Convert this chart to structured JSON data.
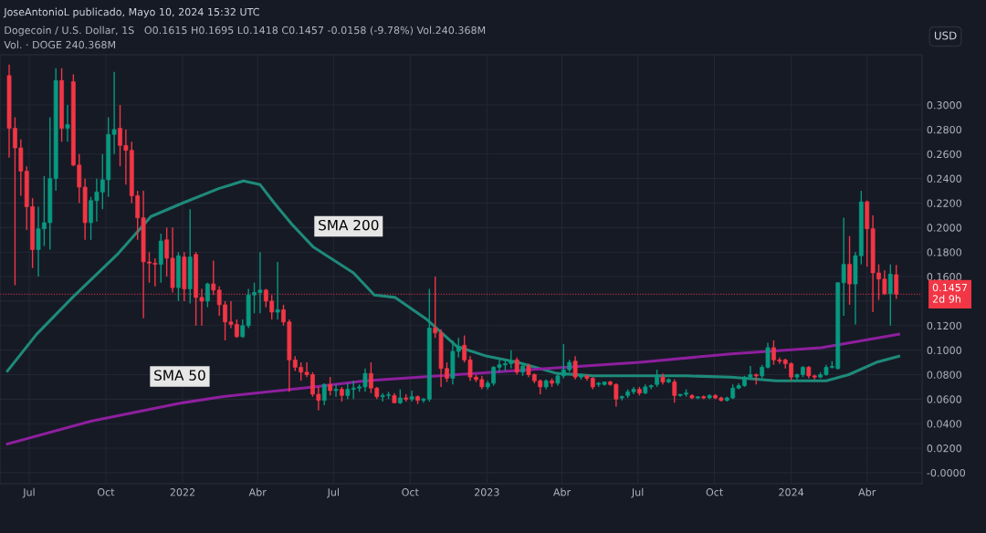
{
  "chart_data": {
    "type": "candlestick",
    "title": "Dogecoin / U.S. Dollar, 1S   O0.1615 H0.1695 L0.1418 C0.1457 -0.0158 (-9.78%) Vol.240.368M",
    "subtitle": "Vol. · DOGE 240.368M",
    "ylabel": "USD",
    "annotations": [
      "JoseAntonioL publicado, Mayo 10, 2024 15:32 UTC",
      "SMA 200",
      "SMA 50"
    ],
    "x": [
      "2021-06-07",
      "2021-06-14",
      "2021-06-21",
      "2021-06-28",
      "2021-07-05",
      "2021-07-12",
      "2021-07-19",
      "2021-07-26",
      "2021-08-02",
      "2021-08-09",
      "2021-08-16",
      "2021-08-23",
      "2021-08-30",
      "2021-09-06",
      "2021-09-13",
      "2021-09-20",
      "2021-09-27",
      "2021-10-04",
      "2021-10-11",
      "2021-10-18",
      "2021-10-25",
      "2021-11-01",
      "2021-11-08",
      "2021-11-15",
      "2021-11-22",
      "2021-11-29",
      "2021-12-06",
      "2021-12-13",
      "2021-12-20",
      "2021-12-27",
      "2022-01-03",
      "2022-01-10",
      "2022-01-17",
      "2022-01-24",
      "2022-01-31",
      "2022-02-07",
      "2022-02-14",
      "2022-02-21",
      "2022-02-28",
      "2022-03-07",
      "2022-03-14",
      "2022-03-21",
      "2022-03-28",
      "2022-04-04",
      "2022-04-11",
      "2022-04-18",
      "2022-04-25",
      "2022-05-02",
      "2022-05-09",
      "2022-05-16",
      "2022-05-23",
      "2022-05-30",
      "2022-06-06",
      "2022-06-13",
      "2022-06-20",
      "2022-06-27",
      "2022-07-04",
      "2022-07-11",
      "2022-07-18",
      "2022-07-25",
      "2022-08-01",
      "2022-08-08",
      "2022-08-15",
      "2022-08-22",
      "2022-08-29",
      "2022-09-05",
      "2022-09-12",
      "2022-09-19",
      "2022-09-26",
      "2022-10-03",
      "2022-10-10",
      "2022-10-17",
      "2022-10-24",
      "2022-10-31",
      "2022-11-07",
      "2022-11-14",
      "2022-11-21",
      "2022-11-28",
      "2022-12-05",
      "2022-12-12",
      "2022-12-19",
      "2022-12-26",
      "2023-01-02",
      "2023-01-09",
      "2023-01-16",
      "2023-01-23",
      "2023-01-30",
      "2023-02-06",
      "2023-02-13",
      "2023-02-20",
      "2023-02-27",
      "2023-03-06",
      "2023-03-13",
      "2023-03-20",
      "2023-03-27",
      "2023-04-03",
      "2023-04-10",
      "2023-04-17",
      "2023-04-24",
      "2023-05-01",
      "2023-05-08",
      "2023-05-15",
      "2023-05-22",
      "2023-05-29",
      "2023-06-05",
      "2023-06-12",
      "2023-06-19",
      "2023-06-26",
      "2023-07-03",
      "2023-07-10",
      "2023-07-17",
      "2023-07-24",
      "2023-07-31",
      "2023-08-07",
      "2023-08-14",
      "2023-08-21",
      "2023-08-28",
      "2023-09-04",
      "2023-09-11",
      "2023-09-18",
      "2023-09-25",
      "2023-10-02",
      "2023-10-09",
      "2023-10-16",
      "2023-10-23",
      "2023-10-30",
      "2023-11-06",
      "2023-11-13",
      "2023-11-20",
      "2023-11-27",
      "2023-12-04",
      "2023-12-11",
      "2023-12-18",
      "2023-12-25",
      "2024-01-01",
      "2024-01-08",
      "2024-01-15",
      "2024-01-22",
      "2024-01-29",
      "2024-02-05",
      "2024-02-12",
      "2024-02-19",
      "2024-02-26",
      "2024-03-04",
      "2024-03-11",
      "2024-03-18",
      "2024-03-25",
      "2024-04-01",
      "2024-04-08",
      "2024-04-15",
      "2024-04-22",
      "2024-04-29",
      "2024-05-06"
    ],
    "ohlc": [
      [
        0.324,
        0.333,
        0.257,
        0.281
      ],
      [
        0.281,
        0.29,
        0.153,
        0.265
      ],
      [
        0.265,
        0.272,
        0.226,
        0.246
      ],
      [
        0.246,
        0.25,
        0.198,
        0.217
      ],
      [
        0.217,
        0.224,
        0.167,
        0.182
      ],
      [
        0.182,
        0.217,
        0.16,
        0.199
      ],
      [
        0.199,
        0.242,
        0.185,
        0.204
      ],
      [
        0.204,
        0.29,
        0.182,
        0.24
      ],
      [
        0.24,
        0.33,
        0.23,
        0.32
      ],
      [
        0.32,
        0.33,
        0.27,
        0.281
      ],
      [
        0.281,
        0.3,
        0.27,
        0.284
      ],
      [
        0.319,
        0.325,
        0.25,
        0.251
      ],
      [
        0.251,
        0.26,
        0.22,
        0.233
      ],
      [
        0.233,
        0.24,
        0.19,
        0.204
      ],
      [
        0.204,
        0.225,
        0.19,
        0.222
      ],
      [
        0.222,
        0.24,
        0.205,
        0.229
      ],
      [
        0.229,
        0.26,
        0.215,
        0.239
      ],
      [
        0.239,
        0.29,
        0.225,
        0.276
      ],
      [
        0.276,
        0.327,
        0.26,
        0.28
      ],
      [
        0.281,
        0.3,
        0.25,
        0.267
      ],
      [
        0.267,
        0.28,
        0.235,
        0.263
      ],
      [
        0.263,
        0.27,
        0.22,
        0.226
      ],
      [
        0.226,
        0.23,
        0.19,
        0.208
      ],
      [
        0.208,
        0.23,
        0.126,
        0.172
      ],
      [
        0.172,
        0.18,
        0.155,
        0.171
      ],
      [
        0.171,
        0.175,
        0.152,
        0.17
      ],
      [
        0.17,
        0.195,
        0.155,
        0.189
      ],
      [
        0.19,
        0.2,
        0.16,
        0.175
      ],
      [
        0.175,
        0.2,
        0.147,
        0.151
      ],
      [
        0.151,
        0.18,
        0.14,
        0.177
      ],
      [
        0.176,
        0.18,
        0.14,
        0.15
      ],
      [
        0.15,
        0.215,
        0.138,
        0.176
      ],
      [
        0.178,
        0.18,
        0.12,
        0.143
      ],
      [
        0.143,
        0.15,
        0.12,
        0.14
      ],
      [
        0.14,
        0.155,
        0.135,
        0.154
      ],
      [
        0.154,
        0.173,
        0.145,
        0.149
      ],
      [
        0.149,
        0.152,
        0.128,
        0.137
      ],
      [
        0.137,
        0.14,
        0.108,
        0.123
      ],
      [
        0.123,
        0.14,
        0.118,
        0.121
      ],
      [
        0.121,
        0.125,
        0.11,
        0.111
      ],
      [
        0.111,
        0.125,
        0.11,
        0.12
      ],
      [
        0.12,
        0.15,
        0.118,
        0.145
      ],
      [
        0.145,
        0.155,
        0.13,
        0.147
      ],
      [
        0.147,
        0.18,
        0.13,
        0.149
      ],
      [
        0.149,
        0.15,
        0.135,
        0.14
      ],
      [
        0.14,
        0.145,
        0.125,
        0.131
      ],
      [
        0.131,
        0.172,
        0.125,
        0.133
      ],
      [
        0.133,
        0.137,
        0.12,
        0.123
      ],
      [
        0.123,
        0.125,
        0.066,
        0.092
      ],
      [
        0.092,
        0.095,
        0.083,
        0.086
      ],
      [
        0.086,
        0.09,
        0.075,
        0.082
      ],
      [
        0.082,
        0.09,
        0.078,
        0.08
      ],
      [
        0.08,
        0.082,
        0.062,
        0.064
      ],
      [
        0.064,
        0.07,
        0.051,
        0.059
      ],
      [
        0.059,
        0.073,
        0.055,
        0.072
      ],
      [
        0.072,
        0.078,
        0.063,
        0.067
      ],
      [
        0.067,
        0.072,
        0.062,
        0.068
      ],
      [
        0.068,
        0.07,
        0.058,
        0.063
      ],
      [
        0.063,
        0.073,
        0.06,
        0.068
      ],
      [
        0.068,
        0.075,
        0.06,
        0.069
      ],
      [
        0.069,
        0.072,
        0.066,
        0.07
      ],
      [
        0.07,
        0.085,
        0.066,
        0.081
      ],
      [
        0.081,
        0.09,
        0.065,
        0.069
      ],
      [
        0.069,
        0.07,
        0.06,
        0.062
      ],
      [
        0.062,
        0.065,
        0.058,
        0.063
      ],
      [
        0.063,
        0.066,
        0.06,
        0.063
      ],
      [
        0.063,
        0.065,
        0.057,
        0.057
      ],
      [
        0.057,
        0.068,
        0.056,
        0.061
      ],
      [
        0.061,
        0.064,
        0.058,
        0.06
      ],
      [
        0.06,
        0.067,
        0.058,
        0.062
      ],
      [
        0.062,
        0.063,
        0.056,
        0.059
      ],
      [
        0.059,
        0.061,
        0.057,
        0.06
      ],
      [
        0.06,
        0.15,
        0.058,
        0.118
      ],
      [
        0.118,
        0.16,
        0.11,
        0.114
      ],
      [
        0.114,
        0.117,
        0.07,
        0.085
      ],
      [
        0.085,
        0.09,
        0.074,
        0.077
      ],
      [
        0.077,
        0.108,
        0.072,
        0.099
      ],
      [
        0.099,
        0.11,
        0.094,
        0.103
      ],
      [
        0.104,
        0.112,
        0.09,
        0.092
      ],
      [
        0.092,
        0.095,
        0.075,
        0.078
      ],
      [
        0.078,
        0.08,
        0.074,
        0.076
      ],
      [
        0.076,
        0.079,
        0.068,
        0.07
      ],
      [
        0.07,
        0.075,
        0.068,
        0.073
      ],
      [
        0.073,
        0.087,
        0.071,
        0.086
      ],
      [
        0.086,
        0.092,
        0.082,
        0.088
      ],
      [
        0.088,
        0.092,
        0.083,
        0.089
      ],
      [
        0.089,
        0.1,
        0.085,
        0.091
      ],
      [
        0.092,
        0.094,
        0.08,
        0.082
      ],
      [
        0.082,
        0.09,
        0.079,
        0.087
      ],
      [
        0.087,
        0.089,
        0.078,
        0.08
      ],
      [
        0.08,
        0.081,
        0.073,
        0.075
      ],
      [
        0.075,
        0.076,
        0.064,
        0.07
      ],
      [
        0.07,
        0.076,
        0.068,
        0.075
      ],
      [
        0.075,
        0.077,
        0.07,
        0.073
      ],
      [
        0.073,
        0.081,
        0.071,
        0.079
      ],
      [
        0.079,
        0.105,
        0.077,
        0.084
      ],
      [
        0.084,
        0.092,
        0.082,
        0.09
      ],
      [
        0.091,
        0.095,
        0.076,
        0.078
      ],
      [
        0.078,
        0.081,
        0.076,
        0.079
      ],
      [
        0.079,
        0.08,
        0.075,
        0.077
      ],
      [
        0.077,
        0.078,
        0.068,
        0.07
      ],
      [
        0.072,
        0.074,
        0.07,
        0.073
      ],
      [
        0.072,
        0.074,
        0.071,
        0.074
      ],
      [
        0.074,
        0.075,
        0.071,
        0.072
      ],
      [
        0.072,
        0.073,
        0.054,
        0.06
      ],
      [
        0.061,
        0.063,
        0.059,
        0.062
      ],
      [
        0.063,
        0.068,
        0.061,
        0.066
      ],
      [
        0.066,
        0.07,
        0.064,
        0.068
      ],
      [
        0.068,
        0.07,
        0.063,
        0.065
      ],
      [
        0.065,
        0.072,
        0.064,
        0.07
      ],
      [
        0.07,
        0.072,
        0.068,
        0.071
      ],
      [
        0.072,
        0.084,
        0.07,
        0.078
      ],
      [
        0.078,
        0.081,
        0.072,
        0.074
      ],
      [
        0.074,
        0.077,
        0.073,
        0.076
      ],
      [
        0.074,
        0.076,
        0.057,
        0.063
      ],
      [
        0.063,
        0.064,
        0.062,
        0.064
      ],
      [
        0.064,
        0.068,
        0.062,
        0.065
      ],
      [
        0.063,
        0.064,
        0.06,
        0.061
      ],
      [
        0.061,
        0.062,
        0.06,
        0.062
      ],
      [
        0.062,
        0.063,
        0.06,
        0.061
      ],
      [
        0.061,
        0.064,
        0.06,
        0.063
      ],
      [
        0.063,
        0.064,
        0.06,
        0.061
      ],
      [
        0.061,
        0.062,
        0.058,
        0.059
      ],
      [
        0.059,
        0.062,
        0.058,
        0.061
      ],
      [
        0.061,
        0.072,
        0.06,
        0.069
      ],
      [
        0.069,
        0.073,
        0.068,
        0.071
      ],
      [
        0.071,
        0.079,
        0.07,
        0.078
      ],
      [
        0.078,
        0.087,
        0.076,
        0.08
      ],
      [
        0.08,
        0.081,
        0.072,
        0.079
      ],
      [
        0.079,
        0.088,
        0.077,
        0.086
      ],
      [
        0.086,
        0.106,
        0.085,
        0.102
      ],
      [
        0.102,
        0.108,
        0.088,
        0.092
      ],
      [
        0.092,
        0.094,
        0.089,
        0.091
      ],
      [
        0.092,
        0.093,
        0.085,
        0.089
      ],
      [
        0.089,
        0.09,
        0.075,
        0.078
      ],
      [
        0.078,
        0.081,
        0.076,
        0.08
      ],
      [
        0.08,
        0.087,
        0.078,
        0.086
      ],
      [
        0.086,
        0.087,
        0.077,
        0.079
      ],
      [
        0.079,
        0.08,
        0.076,
        0.078
      ],
      [
        0.078,
        0.082,
        0.077,
        0.08
      ],
      [
        0.08,
        0.088,
        0.079,
        0.086
      ],
      [
        0.086,
        0.091,
        0.085,
        0.086
      ],
      [
        0.085,
        0.155,
        0.084,
        0.155
      ],
      [
        0.155,
        0.208,
        0.128,
        0.17
      ],
      [
        0.17,
        0.193,
        0.137,
        0.154
      ],
      [
        0.154,
        0.18,
        0.121,
        0.177
      ],
      [
        0.177,
        0.23,
        0.17,
        0.221
      ],
      [
        0.221,
        0.222,
        0.168,
        0.199
      ],
      [
        0.199,
        0.21,
        0.131,
        0.163
      ],
      [
        0.163,
        0.17,
        0.141,
        0.158
      ],
      [
        0.158,
        0.165,
        0.145,
        0.146
      ],
      [
        0.146,
        0.17,
        0.12,
        0.162
      ],
      [
        0.1615,
        0.1695,
        0.1418,
        0.1457
      ]
    ],
    "colors": [
      "#f23645",
      "#f23645",
      "#f23645",
      "#f23645",
      "#f23645",
      "#089981",
      "#089981",
      "#089981",
      "#089981",
      "#f23645",
      "#089981",
      "#f23645",
      "#f23645",
      "#f23645",
      "#089981",
      "#089981",
      "#089981",
      "#089981",
      "#089981",
      "#f23645",
      "#f23645",
      "#f23645",
      "#f23645",
      "#f23645",
      "#f23645",
      "#f23645",
      "#089981",
      "#f23645",
      "#f23645",
      "#089981",
      "#f23645",
      "#089981",
      "#f23645",
      "#f23645",
      "#089981",
      "#f23645",
      "#f23645",
      "#f23645",
      "#f23645",
      "#f23645",
      "#089981",
      "#089981",
      "#089981",
      "#089981",
      "#f23645",
      "#f23645",
      "#089981",
      "#f23645",
      "#f23645",
      "#f23645",
      "#f23645",
      "#f23645",
      "#f23645",
      "#f23645",
      "#089981",
      "#f23645",
      "#089981",
      "#f23645",
      "#089981",
      "#089981",
      "#089981",
      "#089981",
      "#f23645",
      "#f23645",
      "#089981",
      "#089981",
      "#f23645",
      "#089981",
      "#f23645",
      "#089981",
      "#f23645",
      "#089981",
      "#089981",
      "#f23645",
      "#f23645",
      "#f23645",
      "#089981",
      "#089981",
      "#f23645",
      "#f23645",
      "#f23645",
      "#f23645",
      "#089981",
      "#089981",
      "#089981",
      "#089981",
      "#089981",
      "#f23645",
      "#089981",
      "#f23645",
      "#f23645",
      "#f23645",
      "#089981",
      "#f23645",
      "#089981",
      "#089981",
      "#089981",
      "#f23645",
      "#089981",
      "#f23645",
      "#f23645",
      "#089981",
      "#089981",
      "#f23645",
      "#f23645",
      "#089981",
      "#089981",
      "#089981",
      "#f23645",
      "#089981",
      "#089981",
      "#089981",
      "#f23645",
      "#089981",
      "#f23645",
      "#089981",
      "#089981",
      "#f23645",
      "#089981",
      "#f23645",
      "#089981",
      "#f23645",
      "#f23645",
      "#089981",
      "#089981",
      "#089981",
      "#089981",
      "#089981",
      "#f23645",
      "#089981",
      "#089981",
      "#f23645",
      "#f23645",
      "#f23645",
      "#f23645",
      "#089981",
      "#089981",
      "#f23645",
      "#f23645",
      "#089981",
      "#089981",
      "#089981",
      "#089981",
      "#089981",
      "#f23645",
      "#089981",
      "#089981",
      "#f23645",
      "#f23645",
      "#f23645",
      "#f23645",
      "#089981",
      "#f23645"
    ],
    "series": [
      {
        "type": "line",
        "color": "#1e8a7a",
        "x": [
          "2021-06-05",
          "2021-07-10",
          "2021-08-22",
          "2021-10-16",
          "2021-11-24",
          "2022-01-01",
          "2022-02-14",
          "2022-03-15",
          "2022-04-04",
          "2022-04-21",
          "2022-05-13",
          "2022-06-07",
          "2022-07-25",
          "2022-08-19",
          "2022-09-13",
          "2022-10-21",
          "2022-11-26",
          "2023-01-01",
          "2023-02-07",
          "2023-03-26",
          "2023-05-09",
          "2023-07-03",
          "2023-08-27",
          "2023-10-21",
          "2023-12-14",
          "2024-02-12",
          "2024-03-10",
          "2024-04-12",
          "2024-05-09"
        ],
        "values": [
          0.083,
          0.113,
          0.143,
          0.179,
          0.209,
          0.22,
          0.232,
          0.238,
          0.235,
          0.22,
          0.202,
          0.184,
          0.163,
          0.145,
          0.143,
          0.125,
          0.103,
          0.095,
          0.09,
          0.081,
          0.079,
          0.079,
          0.079,
          0.078,
          0.075,
          0.075,
          0.08,
          0.09,
          0.095
        ]
      },
      {
        "type": "line",
        "color": "#8e1f9e",
        "x": [
          "2021-06-05",
          "2021-09-13",
          "2022-01-01",
          "2022-02-17",
          "2022-06-07",
          "2022-08-08",
          "2022-11-26",
          "2023-03-26",
          "2023-07-03",
          "2023-10-21",
          "2024-02-06",
          "2024-05-09"
        ],
        "values": [
          0.0235,
          0.042,
          0.057,
          0.062,
          0.07,
          0.075,
          0.08,
          0.0855,
          0.09,
          0.097,
          0.102,
          0.113
        ]
      }
    ],
    "ref_lines": [
      {
        "axis": "y",
        "value": 0.1457,
        "label": "0.1457\n2d 9h",
        "color": "#f23645",
        "line_style": "dotted"
      }
    ],
    "xlim": [
      "2021-05-27",
      "2024-06-06"
    ],
    "ylim": [
      -0.009,
      0.341
    ],
    "xticks": [
      {
        "value": "2021-07-01",
        "label": "Jul"
      },
      {
        "value": "2021-10-01",
        "label": "Oct"
      },
      {
        "value": "2022-01-01",
        "label": "2022"
      },
      {
        "value": "2022-04-01",
        "label": "Abr"
      },
      {
        "value": "2022-07-01",
        "label": "Jul"
      },
      {
        "value": "2022-10-01",
        "label": "Oct"
      },
      {
        "value": "2023-01-01",
        "label": "2023"
      },
      {
        "value": "2023-04-01",
        "label": "Abr"
      },
      {
        "value": "2023-07-01",
        "label": "Jul"
      },
      {
        "value": "2023-10-01",
        "label": "Oct"
      },
      {
        "value": "2024-01-01",
        "label": "2024"
      },
      {
        "value": "2024-04-01",
        "label": "Abr"
      }
    ],
    "yticks": [
      {
        "value": 0,
        "label": "-0.0000"
      },
      {
        "value": 0.02,
        "label": "0.0200"
      },
      {
        "value": 0.04,
        "label": "0.0400"
      },
      {
        "value": 0.06,
        "label": "0.0600"
      },
      {
        "value": 0.08,
        "label": "0.0800"
      },
      {
        "value": 0.1,
        "label": "0.1000"
      },
      {
        "value": 0.12,
        "label": "0.1200"
      },
      {
        "value": 0.14,
        "label": null
      },
      {
        "value": 0.16,
        "label": "0.1600"
      },
      {
        "value": 0.18,
        "label": "0.1800"
      },
      {
        "value": 0.2,
        "label": "0.2000"
      },
      {
        "value": 0.22,
        "label": "0.2200"
      },
      {
        "value": 0.24,
        "label": "0.2400"
      },
      {
        "value": 0.26,
        "label": "0.2600"
      },
      {
        "value": 0.28,
        "label": "0.2800"
      },
      {
        "value": 0.3,
        "label": "0.3000"
      }
    ],
    "grid": true
  }
}
